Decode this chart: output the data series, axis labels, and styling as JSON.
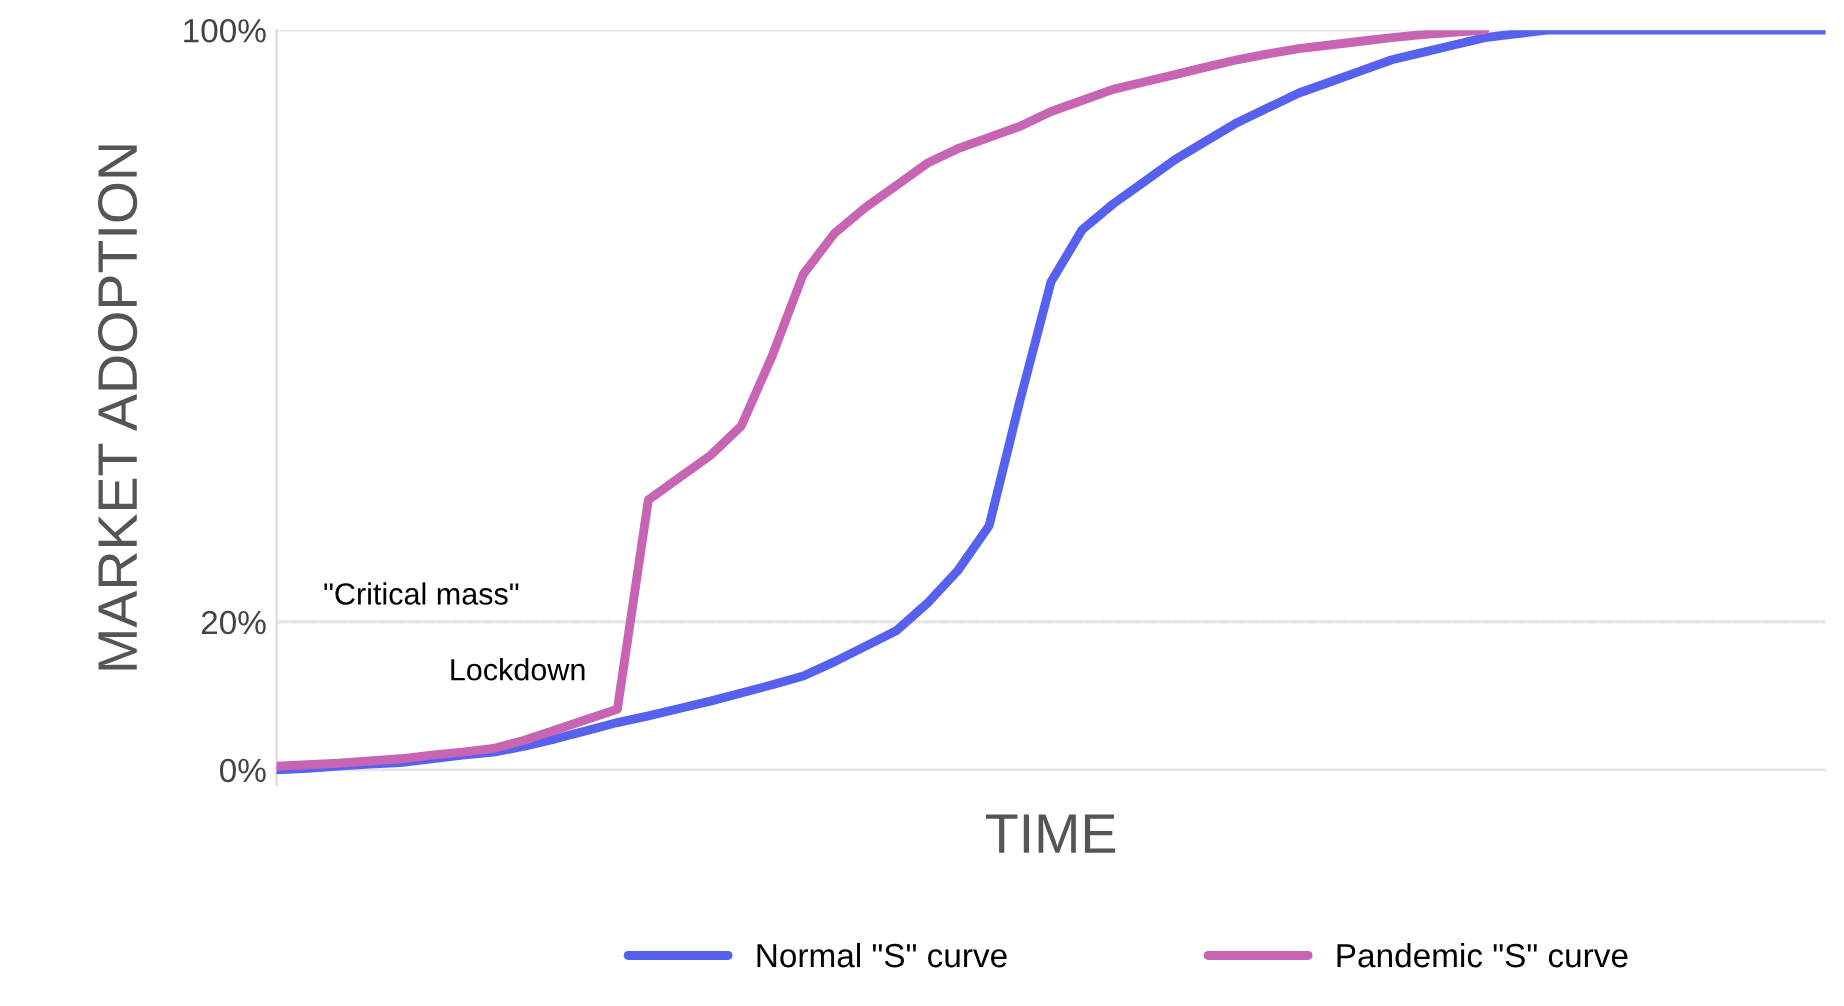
{
  "chart_data": {
    "type": "line",
    "xlabel": "TIME",
    "ylabel": "MARKET ADOPTION",
    "ylim": [
      -2,
      100
    ],
    "categories": [
      null,
      null,
      null,
      null,
      null,
      null,
      null,
      null,
      null,
      null,
      null,
      null,
      null,
      null,
      null,
      null,
      null,
      null,
      null,
      null,
      null,
      null,
      null,
      null,
      null,
      null,
      null,
      null,
      null,
      null,
      null,
      null,
      null,
      null,
      null,
      null,
      null,
      null,
      null,
      null,
      null,
      null,
      null,
      null,
      null,
      null,
      null,
      null,
      null,
      null,
      null
    ],
    "yticks": [
      {
        "value": 0,
        "label": "0%"
      },
      {
        "value": 20,
        "label": "20%"
      },
      {
        "value": 100,
        "label": "100%"
      }
    ],
    "tick_labels": "y",
    "grid": "y",
    "legend": "bottom",
    "line_style": "solid",
    "marker": "none",
    "series": [
      {
        "name": "Normal \"S\" curve",
        "color": "#5661f0",
        "values": [
          0,
          0.2,
          0.5,
          0.8,
          1,
          1.5,
          2,
          2.4,
          3.2,
          4.2,
          5.3,
          6.4,
          7.3,
          8.3,
          9.3,
          10.4,
          11.5,
          12.7,
          14.6,
          16.7,
          18.8,
          22.5,
          27,
          33,
          50,
          66,
          73,
          76.5,
          79.5,
          82.5,
          85,
          87.5,
          89.5,
          91.5,
          93,
          94.5,
          96,
          97,
          98,
          99,
          99.5,
          100,
          100,
          100,
          100,
          100,
          100,
          100,
          100,
          100,
          100
        ]
      },
      {
        "name": "Pandemic \"S\" curve",
        "color": "#c864b4",
        "values": [
          0.5,
          0.7,
          0.9,
          1.2,
          1.5,
          2,
          2.4,
          2.9,
          4,
          5.4,
          6.8,
          8.2,
          36.5,
          39.5,
          42.5,
          46.5,
          56,
          67,
          72.5,
          76,
          79,
          82,
          84,
          85.5,
          87,
          89,
          90.5,
          92,
          93,
          94,
          95,
          96,
          96.8,
          97.5,
          98,
          98.5,
          99,
          99.4,
          99.7,
          100,
          null,
          null,
          null,
          null,
          null,
          null,
          null,
          null,
          null,
          null,
          null
        ]
      }
    ],
    "ref_lines": [
      {
        "axis": "y",
        "value": 20,
        "label": "\"Critical mass\"",
        "line_style": "dashed",
        "color": "#dddddd"
      }
    ],
    "annotations": [
      "Lockdown"
    ]
  }
}
